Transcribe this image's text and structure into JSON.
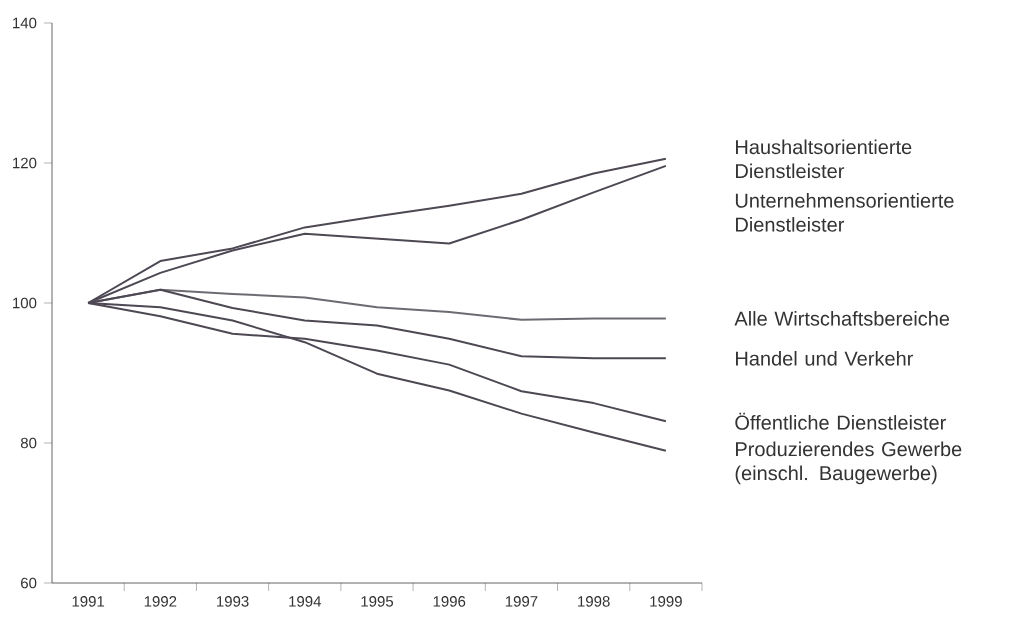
{
  "chart_data": {
    "type": "line",
    "categories": [
      "1991",
      "1992",
      "1993",
      "1994",
      "1995",
      "1996",
      "1997",
      "1998",
      "1999"
    ],
    "ylim": [
      60,
      140
    ],
    "yticks": [
      60,
      80,
      100,
      120,
      140
    ],
    "grid": false,
    "marker": "none",
    "line_style": "solid",
    "series": [
      {
        "name": "Haushaltsorientierte Dienstleister",
        "color": "#4d4853",
        "values": [
          100,
          106.0,
          107.8,
          110.8,
          112.4,
          113.9,
          115.6,
          118.5,
          120.6
        ]
      },
      {
        "name": "Unternehmensorientierte Dienstleister",
        "color": "#4d4853",
        "values": [
          100,
          104.3,
          107.5,
          109.9,
          109.2,
          108.5,
          111.9,
          115.8,
          119.6
        ]
      },
      {
        "name": "Alle Wirtschaftsbereiche",
        "color": "#6e6a72",
        "values": [
          100,
          101.9,
          101.3,
          100.8,
          99.4,
          98.7,
          97.6,
          97.8,
          97.8
        ]
      },
      {
        "name": "Handel und Verkehr",
        "color": "#4d4853",
        "values": [
          100,
          101.9,
          99.3,
          97.5,
          96.8,
          94.9,
          92.4,
          92.1,
          92.1
        ]
      },
      {
        "name": "Öffentliche Dienstleister",
        "color": "#4d4853",
        "values": [
          100,
          98.1,
          95.6,
          94.9,
          93.2,
          91.2,
          87.4,
          85.7,
          83.1
        ]
      },
      {
        "name": "Produzierendes Gewerbe (einschl. Baugewerbe)",
        "color": "#4d4853",
        "values": [
          100,
          99.4,
          97.5,
          94.4,
          89.9,
          87.5,
          84.2,
          81.5,
          78.9
        ]
      }
    ]
  }
}
